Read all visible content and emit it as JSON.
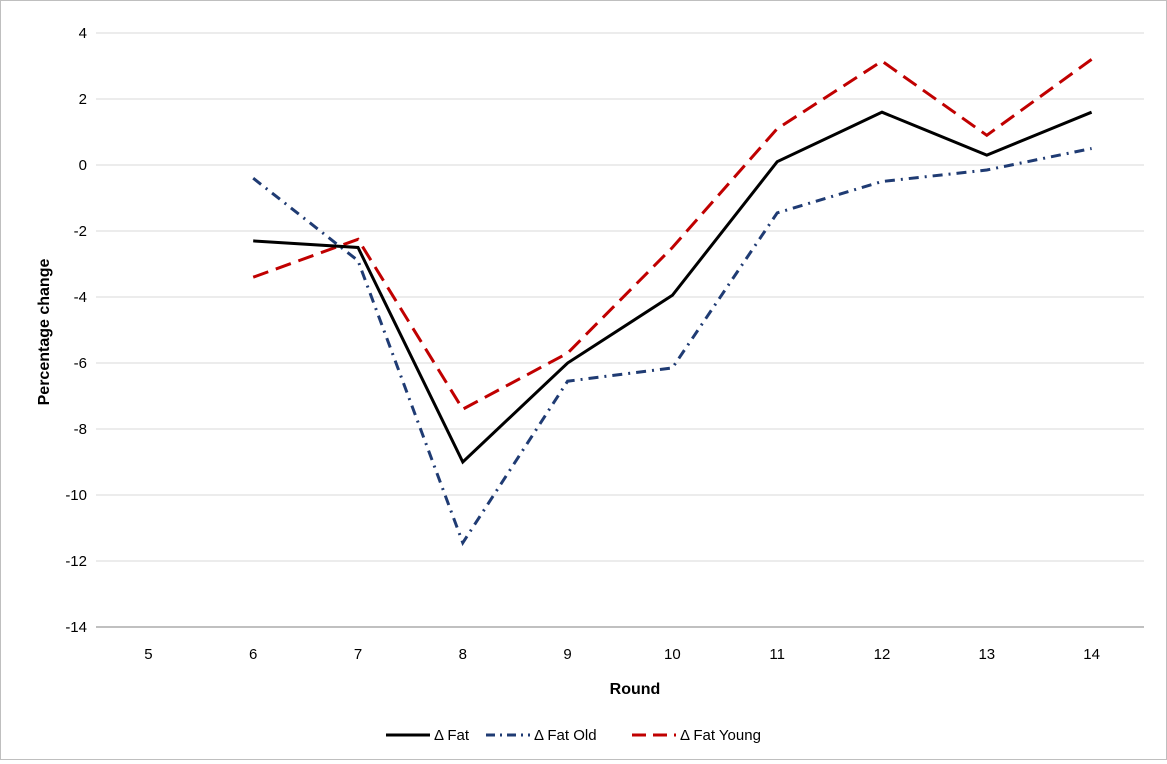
{
  "chart_data": {
    "type": "line",
    "title": "",
    "xlabel": "Round",
    "ylabel": "Percentage change",
    "categories": [
      "5",
      "6",
      "7",
      "8",
      "9",
      "10",
      "11",
      "12",
      "13",
      "14"
    ],
    "ylim": [
      -14,
      4
    ],
    "yticks": [
      4,
      2,
      0,
      -2,
      -4,
      -6,
      -8,
      -10,
      -12,
      -14
    ],
    "grid": "horizontal",
    "legend_position": "bottom",
    "series": [
      {
        "name": "Δ Fat",
        "color": "#000000",
        "dash": "solid",
        "values": [
          null,
          -2.3,
          -2.5,
          -9.0,
          -6.0,
          -3.95,
          0.1,
          1.6,
          0.3,
          1.6
        ]
      },
      {
        "name": "Δ Fat Old",
        "color": "#1f3b73",
        "dash": "dash-dot",
        "values": [
          null,
          -0.4,
          -2.9,
          -11.45,
          -6.55,
          -6.15,
          -1.45,
          -0.5,
          -0.15,
          0.5
        ]
      },
      {
        "name": "Δ Fat Young",
        "color": "#c00000",
        "dash": "dash",
        "values": [
          null,
          -3.4,
          -2.25,
          -7.4,
          -5.7,
          -2.5,
          1.1,
          3.15,
          0.9,
          3.2
        ]
      }
    ]
  }
}
